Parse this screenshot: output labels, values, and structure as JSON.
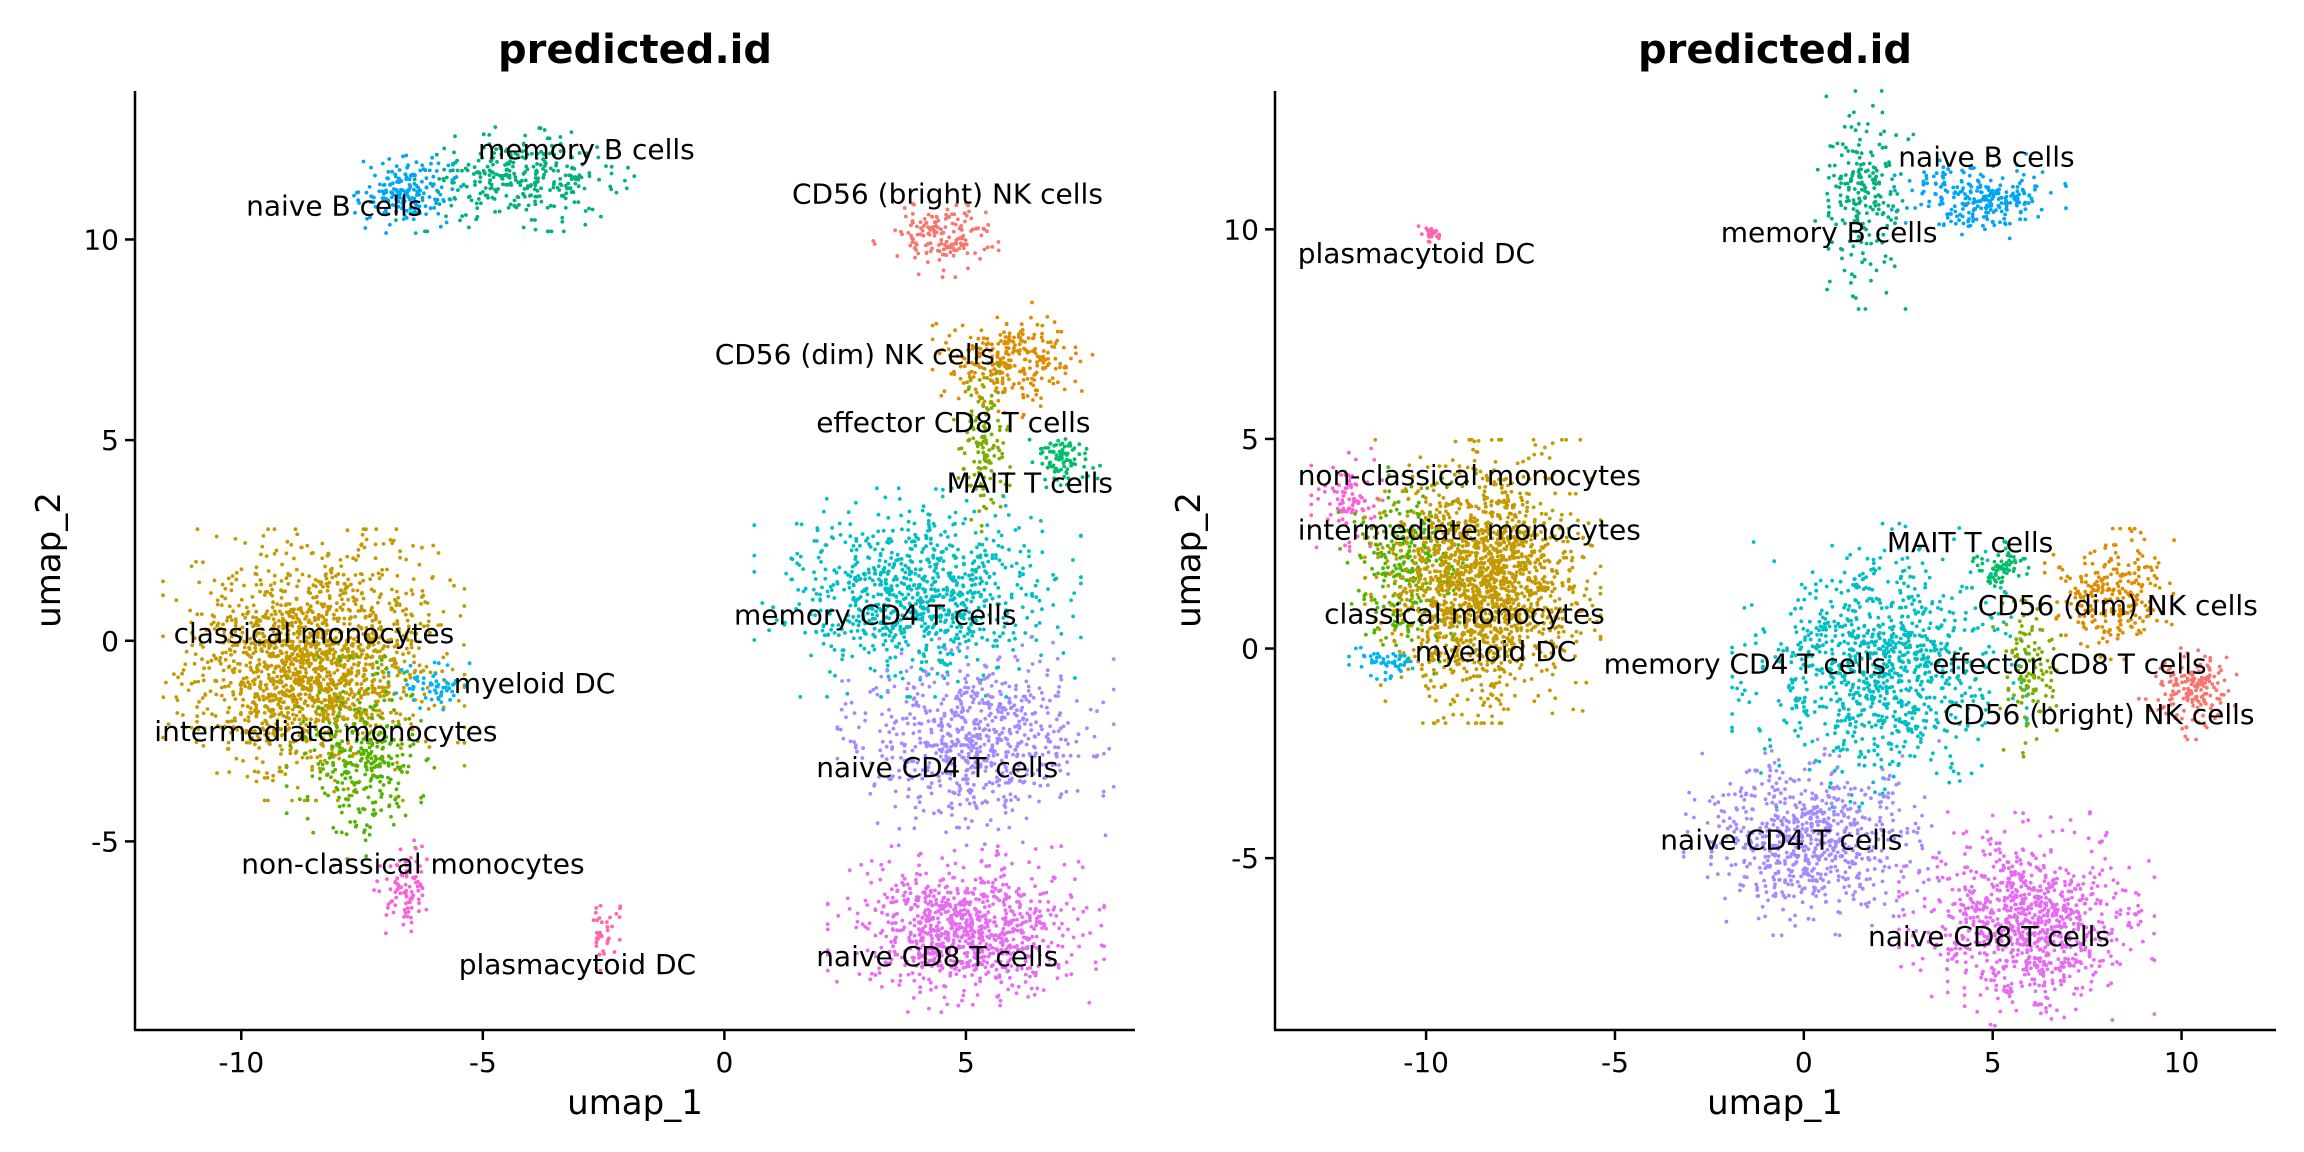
{
  "chart_data": [
    {
      "type": "scatter",
      "title": "predicted.id",
      "xlabel": "umap_1",
      "ylabel": "umap_2",
      "xlim": [
        -12.2,
        8.5
      ],
      "ylim": [
        -9.7,
        13.7
      ],
      "xticks": [
        -10,
        -5,
        0,
        5
      ],
      "yticks": [
        -5,
        0,
        5,
        10
      ],
      "tick_labels_x": [
        "-10",
        "-5",
        "0",
        "5"
      ],
      "tick_labels_y": [
        "-5",
        "0",
        "5",
        "10"
      ],
      "grid": false,
      "legend": "none",
      "clusters": [
        {
          "name": "memory B cells",
          "color": "#00B07F",
          "cx": -4.2,
          "cy": 11.5,
          "sx": 1.0,
          "sy": 0.5,
          "n": 320,
          "label_x": -5.1,
          "label_y": 12.0
        },
        {
          "name": "naive B cells",
          "color": "#00A5F5",
          "cx": -6.6,
          "cy": 11.2,
          "sx": 0.45,
          "sy": 0.4,
          "n": 180,
          "label_x": -9.9,
          "label_y": 10.6
        },
        {
          "name": "CD56 (bright) NK cells",
          "color": "#F8766D",
          "cx": 4.5,
          "cy": 10.1,
          "sx": 0.55,
          "sy": 0.4,
          "n": 160,
          "label_x": 1.4,
          "label_y": 10.9
        },
        {
          "name": "CD56 (dim) NK cells",
          "color": "#DE8C00",
          "cx": 6.0,
          "cy": 7.0,
          "sx": 0.65,
          "sy": 0.55,
          "n": 280,
          "label_x": -0.2,
          "label_y": 6.9
        },
        {
          "name": "effector CD8 T cells",
          "color": "#7CAE00",
          "cx": 5.4,
          "cy": 4.8,
          "sx": 0.25,
          "sy": 0.8,
          "n": 130,
          "label_x": 1.9,
          "label_y": 5.2
        },
        {
          "name": "MAIT T cells",
          "color": "#00BE67",
          "cx": 7.0,
          "cy": 4.5,
          "sx": 0.3,
          "sy": 0.3,
          "n": 90,
          "label_x": 4.6,
          "label_y": 3.7
        },
        {
          "name": "memory CD4 T cells",
          "color": "#00BFC4",
          "cx": 4.0,
          "cy": 1.2,
          "sx": 1.3,
          "sy": 1.0,
          "n": 900,
          "label_x": 0.2,
          "label_y": 0.4
        },
        {
          "name": "classical monocytes",
          "color": "#C49A00",
          "cx": -8.5,
          "cy": -0.6,
          "sx": 1.2,
          "sy": 1.3,
          "n": 1700,
          "label_x": -11.4,
          "label_y": -0.05
        },
        {
          "name": "myeloid DC",
          "color": "#00B4EF",
          "cx": -6.0,
          "cy": -1.1,
          "sx": 0.4,
          "sy": 0.3,
          "n": 60,
          "label_x": -5.6,
          "label_y": -1.3
        },
        {
          "name": "intermediate monocytes",
          "color": "#53B400",
          "cx": -7.5,
          "cy": -3.0,
          "sx": 0.6,
          "sy": 1.0,
          "n": 300,
          "label_x": -11.8,
          "label_y": -2.5
        },
        {
          "name": "naive CD4 T cells",
          "color": "#A58AFF",
          "cx": 5.2,
          "cy": -2.5,
          "sx": 1.1,
          "sy": 1.0,
          "n": 700,
          "label_x": 1.9,
          "label_y": -3.4
        },
        {
          "name": "non-classical monocytes",
          "color": "#FB61D7",
          "cx": -6.6,
          "cy": -6.2,
          "sx": 0.25,
          "sy": 0.5,
          "n": 90,
          "label_x": -10.0,
          "label_y": -5.8
        },
        {
          "name": "plasmacytoid DC",
          "color": "#FF65AC",
          "cx": -2.5,
          "cy": -7.3,
          "sx": 0.2,
          "sy": 0.4,
          "n": 35,
          "label_x": -5.5,
          "label_y": -8.3
        },
        {
          "name": "naive CD8 T cells",
          "color": "#E76BF3",
          "cx": 5.0,
          "cy": -7.2,
          "sx": 1.1,
          "sy": 0.8,
          "n": 900,
          "label_x": 1.9,
          "label_y": -8.1
        }
      ]
    },
    {
      "type": "scatter",
      "title": "predicted.id",
      "xlabel": "umap_1",
      "ylabel": "umap_2",
      "xlim": [
        -14.0,
        12.5
      ],
      "ylim": [
        -9.1,
        13.3
      ],
      "xticks": [
        -10,
        -5,
        0,
        5,
        10
      ],
      "yticks": [
        -5,
        0,
        5,
        10
      ],
      "tick_labels_x": [
        "-10",
        "-5",
        "0",
        "5",
        "10"
      ],
      "tick_labels_y": [
        "-5",
        "0",
        "5",
        "10"
      ],
      "grid": false,
      "legend": "none",
      "clusters": [
        {
          "name": "naive B cells",
          "color": "#00A5F5",
          "cx": 4.6,
          "cy": 10.8,
          "sx": 0.9,
          "sy": 0.4,
          "n": 250,
          "label_x": 2.5,
          "label_y": 11.5
        },
        {
          "name": "memory B cells",
          "color": "#00B07F",
          "cx": 1.6,
          "cy": 10.7,
          "sx": 0.5,
          "sy": 1.0,
          "n": 220,
          "label_x": -2.2,
          "label_y": 9.7
        },
        {
          "name": "plasmacytoid DC",
          "color": "#FF65AC",
          "cx": -9.9,
          "cy": 9.9,
          "sx": 0.12,
          "sy": 0.1,
          "n": 30,
          "label_x": -13.4,
          "label_y": 9.2
        },
        {
          "name": "non-classical monocytes",
          "color": "#FB61D7",
          "cx": -12.0,
          "cy": 3.5,
          "sx": 0.4,
          "sy": 0.5,
          "n": 90,
          "label_x": -13.4,
          "label_y": 3.9
        },
        {
          "name": "intermediate monocytes",
          "color": "#53B400",
          "cx": -10.5,
          "cy": 2.0,
          "sx": 0.7,
          "sy": 1.0,
          "n": 300,
          "label_x": -13.4,
          "label_y": 2.6
        },
        {
          "name": "classical monocytes",
          "color": "#C49A00",
          "cx": -8.5,
          "cy": 1.6,
          "sx": 1.2,
          "sy": 1.3,
          "n": 1700,
          "label_x": -12.7,
          "label_y": 0.6
        },
        {
          "name": "myeloid DC",
          "color": "#00B4EF",
          "cx": -11.0,
          "cy": -0.3,
          "sx": 0.4,
          "sy": 0.2,
          "n": 50,
          "label_x": -10.3,
          "label_y": -0.3
        },
        {
          "name": "MAIT T cells",
          "color": "#00BE67",
          "cx": 5.2,
          "cy": 1.9,
          "sx": 0.3,
          "sy": 0.25,
          "n": 70,
          "label_x": 2.2,
          "label_y": 2.3
        },
        {
          "name": "CD56 (dim) NK cells",
          "color": "#DE8C00",
          "cx": 8.2,
          "cy": 1.3,
          "sx": 0.7,
          "sy": 0.6,
          "n": 260,
          "label_x": 4.6,
          "label_y": 0.8
        },
        {
          "name": "memory CD4 T cells",
          "color": "#00BFC4",
          "cx": 2.0,
          "cy": -0.4,
          "sx": 1.5,
          "sy": 1.3,
          "n": 1000,
          "label_x": -5.3,
          "label_y": -0.6
        },
        {
          "name": "effector CD8 T cells",
          "color": "#7CAE00",
          "cx": 6.0,
          "cy": -0.5,
          "sx": 0.4,
          "sy": 0.8,
          "n": 120,
          "label_x": 3.4,
          "label_y": -0.6
        },
        {
          "name": "CD56 (bright) NK cells",
          "color": "#F8766D",
          "cx": 10.3,
          "cy": -1.0,
          "sx": 0.55,
          "sy": 0.45,
          "n": 160,
          "label_x": 3.7,
          "label_y": -1.8
        },
        {
          "name": "naive CD4 T cells",
          "color": "#A58AFF",
          "cx": 0.2,
          "cy": -4.5,
          "sx": 1.3,
          "sy": 0.9,
          "n": 700,
          "label_x": -3.8,
          "label_y": -4.8
        },
        {
          "name": "naive CD8 T cells",
          "color": "#E76BF3",
          "cx": 5.9,
          "cy": -6.5,
          "sx": 1.3,
          "sy": 1.0,
          "n": 950,
          "label_x": 1.7,
          "label_y": -7.1
        }
      ]
    }
  ]
}
